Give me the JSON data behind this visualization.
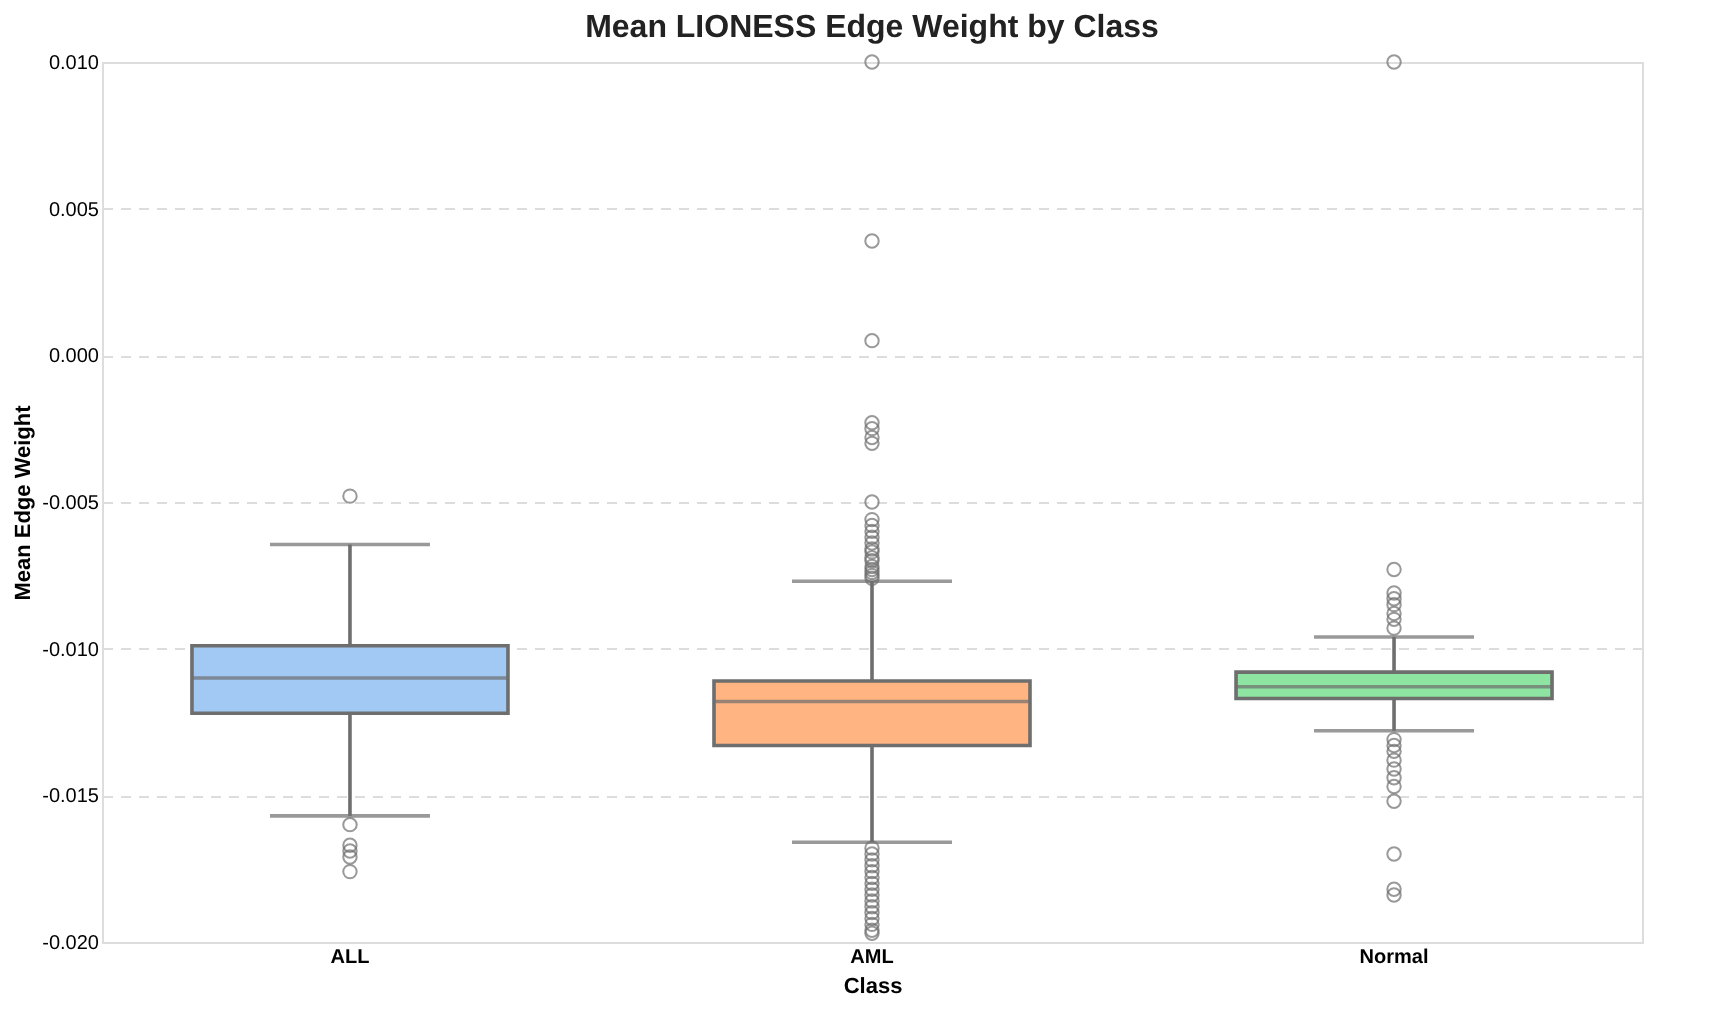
{
  "chart_data": {
    "type": "box",
    "title": "Mean LIONESS Edge Weight by Class",
    "xlabel": "Class",
    "ylabel": "Mean Edge Weight",
    "categories": [
      "ALL",
      "AML",
      "Normal"
    ],
    "colors": [
      "#a1c9f4",
      "#ffb482",
      "#8de5a1"
    ],
    "boxes": [
      {
        "low": -0.0157,
        "q1": -0.0122,
        "median": -0.011,
        "q3": -0.0099,
        "high": -0.00645,
        "outliers": [
          -0.0048,
          -0.016,
          -0.0167,
          -0.0169,
          -0.0171,
          -0.0176
        ]
      },
      {
        "low": -0.0166,
        "q1": -0.0133,
        "median": -0.0118,
        "q3": -0.0111,
        "high": -0.0077,
        "outliers": [
          0.01,
          0.0039,
          0.0005,
          -0.0023,
          -0.0025,
          -0.0028,
          -0.003,
          -0.005,
          -0.0056,
          -0.0058,
          -0.006,
          -0.0062,
          -0.0064,
          -0.0066,
          -0.0067,
          -0.0069,
          -0.007,
          -0.0072,
          -0.0073,
          -0.0074,
          -0.0075,
          -0.0076,
          -0.0168,
          -0.017,
          -0.0172,
          -0.0174,
          -0.0176,
          -0.0178,
          -0.018,
          -0.0182,
          -0.0184,
          -0.0186,
          -0.0188,
          -0.019,
          -0.0192,
          -0.0194,
          -0.0196,
          -0.0197
        ]
      },
      {
        "low": -0.0128,
        "q1": -0.0117,
        "median": -0.0113,
        "q3": -0.0108,
        "high": -0.0096,
        "outliers": [
          0.01,
          -0.0073,
          -0.0081,
          -0.0083,
          -0.0085,
          -0.0088,
          -0.009,
          -0.0093,
          -0.0131,
          -0.0133,
          -0.0135,
          -0.0138,
          -0.0141,
          -0.0144,
          -0.0147,
          -0.0152,
          -0.017,
          -0.0182,
          -0.0184
        ]
      }
    ],
    "ylim": [
      -0.02,
      0.01
    ],
    "yticks": [
      {
        "value": -0.02,
        "label": "-0.020"
      },
      {
        "value": -0.015,
        "label": "-0.015"
      },
      {
        "value": -0.01,
        "label": "-0.010"
      },
      {
        "value": -0.005,
        "label": "-0.005"
      },
      {
        "value": 0,
        "label": "0.000"
      },
      {
        "value": 0.005,
        "label": "0.005"
      },
      {
        "value": 0.01,
        "label": "0.010"
      }
    ],
    "grid": "y"
  }
}
